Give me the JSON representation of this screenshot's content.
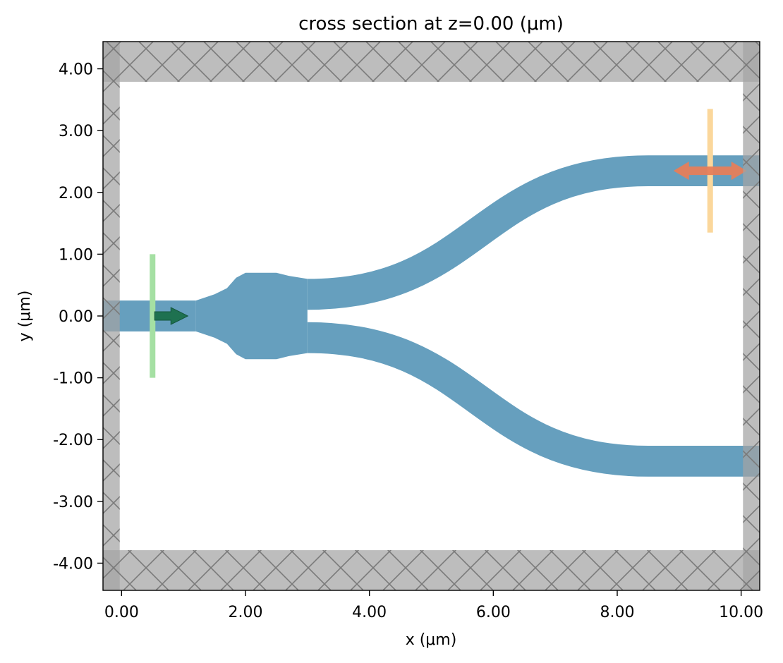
{
  "chart_data": {
    "type": "simulation-cross-section",
    "title": "cross section at z=0.00 (μm)",
    "xlabel": "x (μm)",
    "ylabel": "y (μm)",
    "xlim": [
      -0.3,
      10.3
    ],
    "ylim": [
      -4.44,
      4.44
    ],
    "xticks": [
      0,
      2,
      4,
      6,
      8,
      10
    ],
    "xtick_labels": [
      "0.00",
      "2.00",
      "4.00",
      "6.00",
      "8.00",
      "10.00"
    ],
    "yticks": [
      4,
      3,
      2,
      1,
      0,
      -1,
      -2,
      -3,
      -4
    ],
    "ytick_labels": [
      "4.00",
      "3.00",
      "2.00",
      "1.00",
      "0.00",
      "-1.00",
      "-2.00",
      "-3.00",
      "-4.00"
    ],
    "grid": false,
    "colors": {
      "waveguide": "#669fbe",
      "pml": "#a3a3a3",
      "pml_overlap": "#8e8e8e",
      "source": "#a5e0a3",
      "source_arrow": "#1e7150",
      "monitor": "#fbd79b",
      "monitor_arrow": "#e67e5a"
    },
    "waveguide": {
      "input": {
        "x": [
          -0.3,
          1.2
        ],
        "y": [
          -0.25,
          0.25
        ]
      },
      "taper": [
        [
          1.2,
          0.25
        ],
        [
          1.5,
          0.35
        ],
        [
          1.7,
          0.45
        ],
        [
          1.85,
          0.62
        ],
        [
          2.0,
          0.7
        ],
        [
          2.5,
          0.7
        ],
        [
          2.7,
          0.65
        ],
        [
          3.0,
          0.6
        ],
        [
          3.0,
          -0.6
        ],
        [
          2.7,
          -0.65
        ],
        [
          2.5,
          -0.7
        ],
        [
          2.0,
          -0.7
        ],
        [
          1.85,
          -0.62
        ],
        [
          1.7,
          -0.45
        ],
        [
          1.5,
          -0.35
        ],
        [
          1.2,
          -0.25
        ]
      ],
      "arms": {
        "x_start": 3.0,
        "x_end": 8.5,
        "x_out": 10.3,
        "y_start": 0.35,
        "y_end": 2.35,
        "width": 0.5
      }
    },
    "pml": {
      "thickness_x": 0.27,
      "thickness_y": 0.65
    },
    "source": {
      "x": 0.5,
      "y_range": [
        -1.0,
        1.0
      ],
      "direction": "+x"
    },
    "monitor": {
      "x": 9.5,
      "y_range": [
        1.35,
        3.35
      ],
      "arrow_y": 2.35,
      "direction": "±x"
    }
  }
}
